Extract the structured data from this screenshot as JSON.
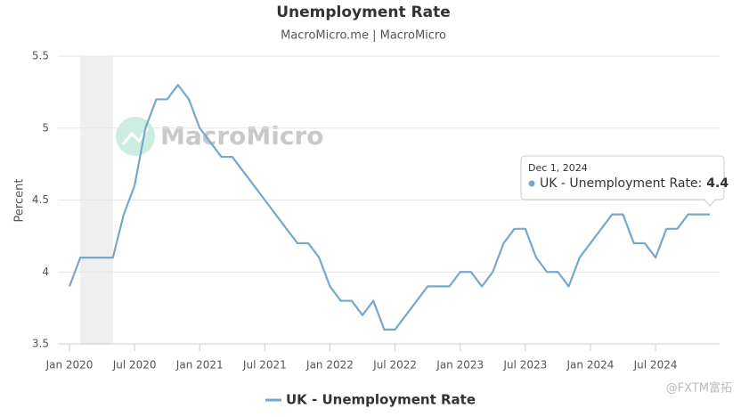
{
  "chart_data": {
    "type": "line",
    "title": "Unemployment Rate",
    "subtitle": "MacroMicro.me | MacroMicro",
    "watermark": "MacroMicro",
    "corner_watermark": "@FXTM富拓",
    "y_label": "Percent",
    "x": [
      "2020-01",
      "2020-02",
      "2020-03",
      "2020-04",
      "2020-05",
      "2020-06",
      "2020-07",
      "2020-08",
      "2020-09",
      "2020-10",
      "2020-11",
      "2020-12",
      "2021-01",
      "2021-02",
      "2021-03",
      "2021-04",
      "2021-05",
      "2021-06",
      "2021-07",
      "2021-08",
      "2021-09",
      "2021-10",
      "2021-11",
      "2021-12",
      "2022-01",
      "2022-02",
      "2022-03",
      "2022-04",
      "2022-05",
      "2022-06",
      "2022-07",
      "2022-08",
      "2022-09",
      "2022-10",
      "2022-11",
      "2022-12",
      "2023-01",
      "2023-02",
      "2023-03",
      "2023-04",
      "2023-05",
      "2023-06",
      "2023-07",
      "2023-08",
      "2023-09",
      "2023-10",
      "2023-11",
      "2023-12",
      "2024-01",
      "2024-02",
      "2024-03",
      "2024-04",
      "2024-05",
      "2024-06",
      "2024-07",
      "2024-08",
      "2024-09",
      "2024-10",
      "2024-11",
      "2024-12"
    ],
    "series": [
      {
        "name": "UK - Unemployment Rate",
        "color": "#76a9c9",
        "values": [
          3.9,
          4.1,
          4.1,
          4.1,
          4.1,
          4.4,
          4.6,
          5.0,
          5.2,
          5.2,
          5.3,
          5.2,
          5.0,
          4.9,
          4.8,
          4.8,
          4.7,
          4.6,
          4.5,
          4.4,
          4.3,
          4.2,
          4.2,
          4.1,
          3.9,
          3.8,
          3.8,
          3.7,
          3.8,
          3.6,
          3.6,
          3.7,
          3.8,
          3.9,
          3.9,
          3.9,
          4.0,
          4.0,
          3.9,
          4.0,
          4.2,
          4.3,
          4.3,
          4.1,
          4.0,
          4.0,
          3.9,
          4.1,
          4.2,
          4.3,
          4.4,
          4.4,
          4.2,
          4.2,
          4.1,
          4.3,
          4.3,
          4.4,
          4.4,
          4.4
        ]
      }
    ],
    "shaded_range": [
      "2020-02",
      "2020-05"
    ],
    "xlim": [
      "2020-01",
      "2024-12"
    ],
    "xticks": [
      {
        "value": "2020-01",
        "label": "Jan 2020"
      },
      {
        "value": "2020-07",
        "label": "Jul 2020"
      },
      {
        "value": "2021-01",
        "label": "Jan 2021"
      },
      {
        "value": "2021-07",
        "label": "Jul 2021"
      },
      {
        "value": "2022-01",
        "label": "Jan 2022"
      },
      {
        "value": "2022-07",
        "label": "Jul 2022"
      },
      {
        "value": "2023-01",
        "label": "Jan 2023"
      },
      {
        "value": "2023-07",
        "label": "Jul 2023"
      },
      {
        "value": "2024-01",
        "label": "Jan 2024"
      },
      {
        "value": "2024-07",
        "label": "Jul 2024"
      }
    ],
    "ylim": [
      3.5,
      5.5
    ],
    "yticks": [
      3.5,
      4,
      4.5,
      5,
      5.5
    ],
    "grid": true,
    "tooltip": {
      "date": "Dec 1, 2024",
      "label": "UK - Unemployment Rate:",
      "value": 4.4
    }
  }
}
